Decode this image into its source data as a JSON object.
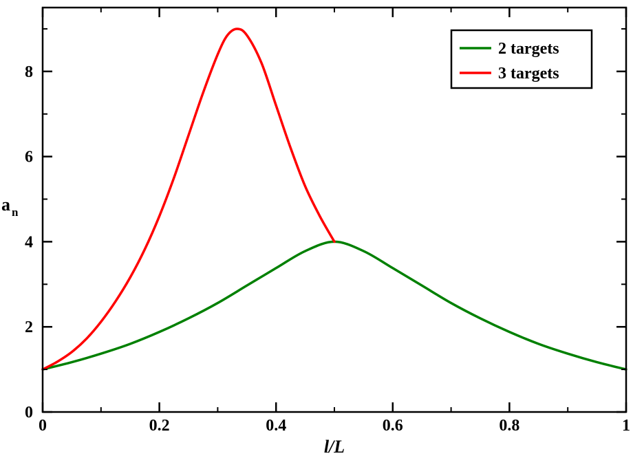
{
  "chart_data": {
    "type": "line",
    "xlabel": "l/L",
    "ylabel": {
      "main": "a",
      "sub": "n"
    },
    "xlim": [
      0,
      1
    ],
    "ylim": [
      0,
      9.5
    ],
    "xticks": [
      0,
      0.2,
      0.4,
      0.6,
      0.8,
      1
    ],
    "xtick_labels": [
      "0",
      "0.2",
      "0.4",
      "0.6",
      "0.8",
      "1"
    ],
    "yticks": [
      0,
      2,
      4,
      6,
      8
    ],
    "ytick_labels": [
      "0",
      "2",
      "4",
      "6",
      "8"
    ],
    "grid": false,
    "legend_position": "top-right",
    "series": [
      {
        "name": "2 targets",
        "color": "#008000",
        "x": [
          0,
          0.05,
          0.1,
          0.15,
          0.2,
          0.25,
          0.3,
          0.35,
          0.4,
          0.45,
          0.5,
          0.55,
          0.6,
          0.65,
          0.7,
          0.75,
          0.8,
          0.85,
          0.9,
          0.95,
          1
        ],
        "y": [
          1.0,
          1.17,
          1.37,
          1.6,
          1.88,
          2.2,
          2.56,
          2.97,
          3.38,
          3.78,
          4.0,
          3.78,
          3.38,
          2.97,
          2.56,
          2.2,
          1.88,
          1.6,
          1.37,
          1.17,
          1.0
        ]
      },
      {
        "name": "3 targets",
        "color": "#ff0000",
        "x": [
          0,
          0.025,
          0.05,
          0.075,
          0.1,
          0.125,
          0.15,
          0.175,
          0.2,
          0.225,
          0.25,
          0.275,
          0.3,
          0.3167,
          0.3333,
          0.35,
          0.375,
          0.4,
          0.425,
          0.45,
          0.475,
          0.5
        ],
        "y": [
          1.0,
          1.18,
          1.41,
          1.72,
          2.12,
          2.6,
          3.16,
          3.82,
          4.6,
          5.5,
          6.5,
          7.5,
          8.4,
          8.85,
          9.0,
          8.85,
          8.2,
          7.2,
          6.2,
          5.3,
          4.6,
          4.0
        ]
      }
    ]
  }
}
